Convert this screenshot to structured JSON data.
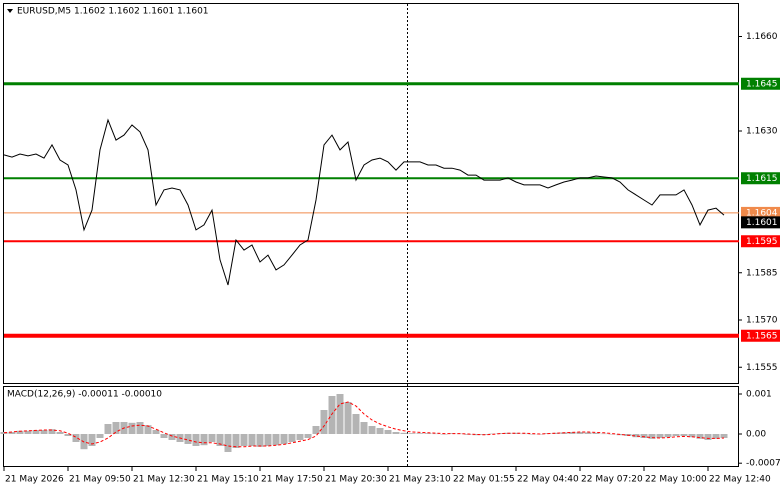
{
  "chart_data": [
    {
      "type": "line",
      "title": "EURUSD,M5  1.1602 1.1602 1.1601 1.1601",
      "color": "#000000",
      "categories": [
        "21 May 2026",
        null,
        null,
        null,
        null,
        null,
        null,
        null,
        "21 May 09:50",
        null,
        null,
        null,
        null,
        null,
        null,
        null,
        "21 May 12:30",
        null,
        null,
        null,
        null,
        null,
        null,
        null,
        "21 May 15:10",
        null,
        null,
        null,
        null,
        null,
        null,
        null,
        "21 May 17:50",
        null,
        null,
        null,
        null,
        null,
        null,
        null,
        "21 May 20:30",
        null,
        null,
        null,
        null,
        null,
        null,
        null,
        "21 May 23:10",
        null,
        null,
        null,
        null,
        null,
        null,
        null,
        "22 May 01:55",
        null,
        null,
        null,
        null,
        null,
        null,
        null,
        "22 May 04:40",
        null,
        null,
        null,
        null,
        null,
        null,
        null,
        "22 May 07:20",
        null,
        null,
        null,
        null,
        null,
        null,
        null,
        "22 May 10:00",
        null,
        null,
        null,
        null,
        null,
        null,
        null,
        "22 May 12:40",
        null,
        null
      ],
      "values": [
        1.16224,
        1.16217,
        1.16227,
        1.16221,
        1.16227,
        1.16214,
        1.16256,
        1.16208,
        1.16192,
        1.16113,
        1.15986,
        1.16049,
        1.1624,
        1.16335,
        1.16271,
        1.16287,
        1.16319,
        1.16297,
        1.1624,
        1.16065,
        1.16113,
        1.16119,
        1.16113,
        1.16065,
        1.15986,
        1.16002,
        1.16049,
        1.15891,
        1.15811,
        1.15954,
        1.15922,
        1.15938,
        1.15884,
        1.15906,
        1.15859,
        1.15875,
        1.15906,
        1.15938,
        1.15954,
        1.16081,
        1.16256,
        1.16287,
        1.1624,
        1.16265,
        1.16144,
        1.16192,
        1.16208,
        1.16214,
        1.16202,
        1.16176,
        1.16202,
        1.16202,
        1.16202,
        1.16192,
        1.16192,
        1.16182,
        1.16182,
        1.16176,
        1.1616,
        1.1616,
        1.16144,
        1.16144,
        1.16144,
        1.16151,
        1.16138,
        1.16129,
        1.16129,
        1.16129,
        1.16119,
        1.16129,
        1.16138,
        1.16144,
        1.16151,
        1.16151,
        1.16157,
        1.16154,
        1.16151,
        1.16138,
        1.16113,
        1.16097,
        1.16081,
        1.16065,
        1.16097,
        1.16097,
        1.16097,
        1.16113,
        1.16065,
        1.16002,
        1.16049,
        1.16055,
        1.16033
      ],
      "ylim": [
        1.155,
        1.167
      ],
      "yticks": [
        {
          "value": 1.166,
          "label": "1.1660"
        },
        {
          "value": 1.163,
          "label": "1.1630"
        },
        1.1585,
        {
          "value": 1.157,
          "label": "1.1570"
        },
        1.1555
      ],
      "levels": [
        {
          "value": 1.1645,
          "color": "#008000",
          "width": 3
        },
        {
          "value": 1.1615,
          "color": "#008000",
          "width": 2
        },
        {
          "value": 1.1604,
          "color": "#f08a4b",
          "width": 1
        },
        {
          "value": 1.1595,
          "color": "#ff0000",
          "width": 2
        },
        {
          "value": 1.1565,
          "color": "#ff0000",
          "width": 4
        }
      ],
      "last_price": 1.1601,
      "last_price_color": "#000000"
    },
    {
      "type": "macd",
      "title": "MACD(12,26,9) -0.00011 -0.00010",
      "ylim": [
        -0.0008,
        0.0012
      ],
      "yticks": [
        0.001,
        {
          "value": 0,
          "label": "0.00"
        },
        -0.00073
      ],
      "histogram": {
        "color": "#b4b4b4",
        "values": [
          5e-05,
          5e-05,
          8e-05,
          8e-05,
          0.0001,
          0.0001,
          0.00012,
          5e-05,
          -5e-05,
          -0.0002,
          -0.00038,
          -0.0003,
          -0.0001,
          0.00025,
          0.0003,
          0.0003,
          0.00028,
          0.0003,
          0.00022,
          0.0001,
          -0.0001,
          -0.00015,
          -0.0002,
          -0.00025,
          -0.0003,
          -0.00028,
          -0.0002,
          -0.0003,
          -0.00045,
          -0.00035,
          -0.0003,
          -0.0003,
          -0.00032,
          -0.0003,
          -0.00028,
          -0.00025,
          -0.0002,
          -0.00015,
          -0.0001,
          0.0002,
          0.0006,
          0.00095,
          0.001,
          0.0008,
          0.0005,
          0.0003,
          0.0002,
          0.00015,
          0.0001,
          5e-05,
          3e-05,
          2e-05,
          2e-05,
          2e-05,
          1e-05,
          0,
          2e-05,
          1e-05,
          -2e-05,
          -3e-05,
          -2e-05,
          1e-05,
          2e-05,
          3e-05,
          3e-05,
          1e-05,
          0,
          -1e-05,
          2e-05,
          3e-05,
          4e-05,
          5e-05,
          5e-05,
          4e-05,
          3e-05,
          1e-05,
          -1e-05,
          -3e-05,
          -5e-05,
          -8e-05,
          -0.0001,
          -0.00012,
          -0.0001,
          -8e-05,
          -5e-05,
          -5e-05,
          -8e-05,
          -0.00012,
          -0.00015,
          -0.00012,
          -0.0001
        ]
      },
      "signal": {
        "color": "#ff0000",
        "values": [
          3e-05,
          5e-05,
          7e-05,
          8e-05,
          9e-05,
          0.0001,
          0.0001,
          8e-05,
          2e-05,
          -8e-05,
          -0.0002,
          -0.00025,
          -0.0002,
          -0.0001,
          5e-05,
          0.00015,
          0.0002,
          0.00022,
          0.0002,
          0.00012,
          3e-05,
          -5e-05,
          -0.0001,
          -0.00015,
          -0.0002,
          -0.00022,
          -0.00022,
          -0.00025,
          -0.0003,
          -0.00032,
          -0.00032,
          -0.0003,
          -0.0003,
          -0.0003,
          -0.00028,
          -0.00026,
          -0.00022,
          -0.00018,
          -0.00014,
          -5e-05,
          0.0002,
          0.0005,
          0.00075,
          0.0008,
          0.0007,
          0.0005,
          0.00035,
          0.00025,
          0.00018,
          0.00012,
          8e-05,
          5e-05,
          4e-05,
          3e-05,
          2e-05,
          1e-05,
          1e-05,
          1e-05,
          0,
          -1e-05,
          -2e-05,
          -1e-05,
          1e-05,
          2e-05,
          2e-05,
          2e-05,
          1e-05,
          0,
          1e-05,
          2e-05,
          3e-05,
          4e-05,
          5e-05,
          5e-05,
          4e-05,
          3e-05,
          1e-05,
          -1e-05,
          -3e-05,
          -5e-05,
          -7e-05,
          -9e-05,
          -0.0001,
          -9e-05,
          -7e-05,
          -6e-05,
          -7e-05,
          -9e-05,
          -0.00011,
          -0.00011,
          -0.0001
        ]
      }
    }
  ]
}
